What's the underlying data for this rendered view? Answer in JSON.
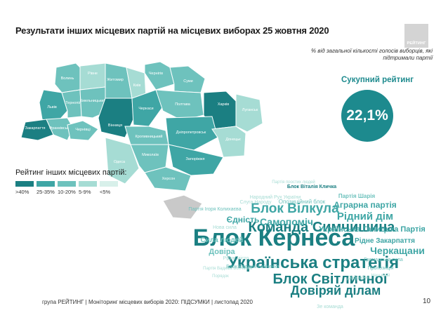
{
  "title": "Результати інших місцевих партій на місцевих виборах 25 жовтня 2020",
  "logo_text": "РЕЙТИНГ",
  "note": "% від загальної кількості голосів виборців, які підтримали партії",
  "total": {
    "label": "Сукупний рейтинг",
    "value": "22,1%"
  },
  "legend": {
    "title": "Рейтинг інших місцевих партій:",
    "items": [
      {
        "label": ">40%",
        "color": "#1b7f82"
      },
      {
        "label": "25-35%",
        "color": "#3fa6a5"
      },
      {
        "label": "10-20%",
        "color": "#6ec2bd"
      },
      {
        "label": "5-9%",
        "color": "#a6dcd4"
      },
      {
        "label": "<5%",
        "color": "#d8f0ea"
      }
    ]
  },
  "regions": [
    {
      "name": "Волинь",
      "color": "#6ec2bd"
    },
    {
      "name": "Рівне",
      "color": "#a6dcd4"
    },
    {
      "name": "Житомир",
      "color": "#6ec2bd"
    },
    {
      "name": "Київ",
      "color": "#a6dcd4"
    },
    {
      "name": "Чернігів",
      "color": "#6ec2bd"
    },
    {
      "name": "Суми",
      "color": "#6ec2bd"
    },
    {
      "name": "Львів",
      "color": "#3fa6a5"
    },
    {
      "name": "Тернопіль",
      "color": "#6ec2bd"
    },
    {
      "name": "Хмельницький",
      "color": "#6ec2bd"
    },
    {
      "name": "Вінниця",
      "color": "#1b7f82"
    },
    {
      "name": "Черкаси",
      "color": "#3fa6a5"
    },
    {
      "name": "Полтава",
      "color": "#6ec2bd"
    },
    {
      "name": "Харків",
      "color": "#1b7f82"
    },
    {
      "name": "Луганськ",
      "color": "#a6dcd4"
    },
    {
      "name": "Закарпаття",
      "color": "#1b7f82"
    },
    {
      "name": "Франківськ",
      "color": "#6ec2bd"
    },
    {
      "name": "Чернівці",
      "color": "#6ec2bd"
    },
    {
      "name": "Кропивницький",
      "color": "#6ec2bd"
    },
    {
      "name": "Дніпропетровськ",
      "color": "#3fa6a5"
    },
    {
      "name": "Донецьк",
      "color": "#a6dcd4"
    },
    {
      "name": "Одеса",
      "color": "#a6dcd4"
    },
    {
      "name": "Миколаїв",
      "color": "#6ec2bd"
    },
    {
      "name": "Запоріжжя",
      "color": "#3fa6a5"
    },
    {
      "name": "Херсон",
      "color": "#6ec2bd"
    }
  ],
  "cloud": [
    {
      "text": "Блок Кернеса",
      "color": "#1b7f82",
      "bold": true
    },
    {
      "text": "Українська стратегія",
      "color": "#1b7f82",
      "bold": true
    },
    {
      "text": "Команда Симчишина",
      "color": "#1b7f82",
      "bold": true
    },
    {
      "text": "Блок Віталія Кличка",
      "color": "#1b7f82",
      "bold": true
    },
    {
      "text": "Блок Світличної",
      "color": "#1b7f82",
      "bold": true
    },
    {
      "text": "Довіряй ділам",
      "color": "#1b7f82",
      "bold": true
    },
    {
      "text": "Блок Вілкула",
      "color": "#3fa6a5",
      "bold": true
    },
    {
      "text": "Рідний дім",
      "color": "#3fa6a5",
      "bold": true
    },
    {
      "text": "Аграрна партія",
      "color": "#3fa6a5",
      "bold": true
    },
    {
      "text": "Українська Галицька Партія",
      "color": "#3fa6a5",
      "bold": true
    },
    {
      "text": "Самопоміч",
      "color": "#3fa6a5",
      "bold": true
    },
    {
      "text": "Рідне Закарпаття",
      "color": "#3fa6a5",
      "bold": true
    },
    {
      "text": "Черкащани",
      "color": "#3fa6a5",
      "bold": true
    },
    {
      "text": "Єдність",
      "color": "#3fa6a5",
      "bold": true
    },
    {
      "text": "Сила людей",
      "color": "#6ec2bd",
      "bold": true
    },
    {
      "text": "Довіра",
      "color": "#6ec2bd",
      "bold": true
    },
    {
      "text": "Партія Шарія",
      "color": "#6ec2bd",
      "bold": true
    },
    {
      "text": "Блок Вадима Бойченка",
      "color": "#6ec2bd",
      "bold": false
    },
    {
      "text": "Опозиційний блок",
      "color": "#6ec2bd",
      "bold": false
    },
    {
      "text": "Громадська сила",
      "color": "#6ec2bd",
      "bold": false
    },
    {
      "text": "Пропозиція",
      "color": "#6ec2bd",
      "bold": false
    },
    {
      "text": "Партія простих людей",
      "color": "#a6dcd4",
      "bold": false
    },
    {
      "text": "Партія Ігоря Колихаєва",
      "color": "#6ec2bd",
      "bold": false
    },
    {
      "text": "Рідне місто",
      "color": "#a6dcd4",
      "bold": false
    },
    {
      "text": "Народний Рух України",
      "color": "#a6dcd4",
      "bold": false
    },
    {
      "text": "Слуга Народу",
      "color": "#a6dcd4",
      "bold": false
    },
    {
      "text": "Партія Вадима Бойченка",
      "color": "#a6dcd4",
      "bold": false
    },
    {
      "text": "Наш край",
      "color": "#a6dcd4",
      "bold": false
    },
    {
      "text": "Порядок",
      "color": "#a6dcd4",
      "bold": false
    },
    {
      "text": "Зе команда",
      "color": "#a6dcd4",
      "bold": false
    },
    {
      "text": "Добробут",
      "color": "#a6dcd4",
      "bold": false
    },
    {
      "text": "Нова сила",
      "color": "#a6dcd4",
      "bold": false
    }
  ],
  "footer": "група РЕЙТИНГ | Моніторинг місцевих виборів 2020: ПІДСУМКИ | листопад 2020",
  "page_number": "10"
}
